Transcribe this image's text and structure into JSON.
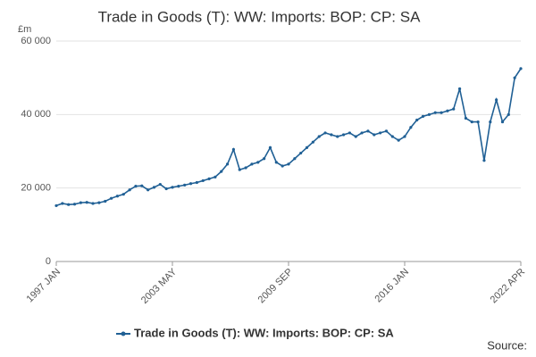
{
  "chart_data": {
    "type": "line",
    "title": "Trade in Goods (T): WW: Imports: BOP: CP: SA",
    "y_label": "£m",
    "source": "Source:",
    "categories": [
      "1997 JAN",
      null,
      null,
      null,
      null,
      null,
      null,
      null,
      null,
      null,
      null,
      null,
      null,
      null,
      null,
      null,
      null,
      null,
      null,
      "2003 MAY",
      null,
      null,
      null,
      null,
      null,
      null,
      null,
      null,
      null,
      null,
      null,
      null,
      null,
      null,
      null,
      null,
      null,
      null,
      "2009 SEP",
      null,
      null,
      null,
      null,
      null,
      null,
      null,
      null,
      null,
      null,
      null,
      null,
      null,
      null,
      null,
      null,
      null,
      null,
      "2016 JAN",
      null,
      null,
      null,
      null,
      null,
      null,
      null,
      null,
      null,
      null,
      null,
      null,
      null,
      null,
      null,
      null,
      null,
      null,
      "2022 APR"
    ],
    "series": [
      {
        "name": "Trade in Goods (T): WW: Imports: BOP: CP: SA",
        "color": "#206095",
        "values": [
          15200,
          15800,
          15500,
          15600,
          16000,
          16100,
          15800,
          16000,
          16400,
          17200,
          17800,
          18300,
          19500,
          20500,
          20600,
          19500,
          20200,
          21000,
          19800,
          20200,
          20500,
          20800,
          21200,
          21500,
          22000,
          22500,
          23000,
          24500,
          26500,
          30500,
          25000,
          25500,
          26500,
          27000,
          28000,
          31000,
          27000,
          26000,
          26500,
          28000,
          29500,
          31000,
          32500,
          34000,
          35000,
          34500,
          34000,
          34500,
          35000,
          34000,
          35000,
          35500,
          34500,
          35000,
          35500,
          34000,
          33000,
          34000,
          36500,
          38500,
          39500,
          40000,
          40500,
          40500,
          41000,
          41500,
          47000,
          39000,
          38000,
          38000,
          27500,
          38000,
          44000,
          38000,
          40000,
          50000,
          52500
        ]
      }
    ],
    "ylim": [
      0,
      60000
    ],
    "yticks": [
      0,
      {
        "value": 20000,
        "label": "20 000"
      },
      {
        "value": 40000,
        "label": "40 000"
      },
      {
        "value": 60000,
        "label": "60 000"
      }
    ],
    "grid": true
  }
}
